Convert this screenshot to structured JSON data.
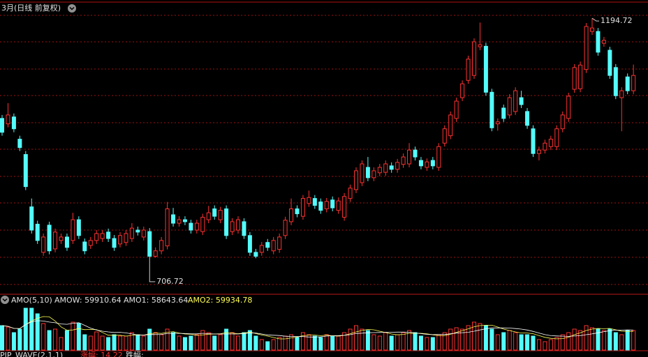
{
  "chart_data": [
    {
      "type": "candlestick",
      "title": "3月(日线 前复权)",
      "up_color": "#ff3232",
      "down_color": "#54fcfc",
      "ylim": [
        639,
        1226
      ],
      "open": [
        992,
        981,
        995,
        950,
        919,
        813,
        778,
        721,
        776,
        728,
        745,
        752,
        745,
        787,
        742,
        735,
        745,
        749,
        762,
        749,
        738,
        741,
        749,
        766,
        752,
        763,
        713,
        724,
        734,
        797,
        780,
        787,
        780,
        766,
        763,
        787,
        809,
        787,
        809,
        763,
        766,
        783,
        755,
        721,
        721,
        741,
        724,
        727,
        755,
        783,
        809,
        794,
        820,
        830,
        823,
        809,
        827,
        806,
        792,
        830,
        848,
        862,
        893,
        872,
        882,
        883,
        896,
        889,
        899,
        900,
        928,
        907,
        893,
        907,
        893,
        942,
        957,
        992,
        1034,
        1069,
        1079,
        1137,
        1138,
        1045,
        981,
        1013,
        999,
        1006,
        1034,
        1006,
        971,
        921,
        928,
        935,
        935,
        971,
        992,
        1051,
        1052,
        1091,
        1168,
        1168,
        1144,
        1130,
        1095,
        1034,
        1076,
        1048
      ],
      "high": [
        999,
        1023,
        1002,
        957,
        926,
        830,
        785,
        759,
        783,
        769,
        759,
        759,
        801,
        794,
        749,
        752,
        766,
        766,
        769,
        756,
        762,
        766,
        780,
        773,
        773,
        770,
        731,
        752,
        823,
        811,
        794,
        794,
        787,
        787,
        799,
        815,
        816,
        813,
        816,
        790,
        794,
        790,
        762,
        728,
        742,
        748,
        752,
        759,
        793,
        830,
        816,
        837,
        846,
        837,
        830,
        831,
        834,
        832,
        841,
        858,
        893,
        907,
        914,
        893,
        900,
        907,
        903,
        910,
        921,
        942,
        935,
        914,
        911,
        914,
        942,
        978,
        1006,
        1034,
        1069,
        1119,
        1154,
        1186,
        1145,
        1052,
        992,
        1020,
        1041,
        1055,
        1048,
        1013,
        978,
        935,
        949,
        957,
        978,
        1006,
        1044,
        1102,
        1107,
        1185,
        1194.72,
        1175,
        1157,
        1137,
        1102,
        1055,
        1083,
        1101
      ],
      "low": [
        957,
        974,
        964,
        926,
        847,
        759,
        738,
        714,
        717,
        721,
        738,
        724,
        738,
        748,
        717,
        728,
        738,
        742,
        742,
        724,
        731,
        734,
        742,
        755,
        745,
        706.72,
        710,
        717,
        727,
        773,
        773,
        776,
        759,
        759,
        756,
        780,
        787,
        780,
        748,
        756,
        759,
        748,
        714,
        709,
        714,
        724,
        717,
        720,
        748,
        776,
        792,
        787,
        813,
        809,
        799,
        802,
        804,
        799,
        785,
        823,
        841,
        855,
        865,
        865,
        875,
        876,
        882,
        882,
        892,
        893,
        907,
        889,
        886,
        889,
        886,
        935,
        950,
        985,
        1027,
        1062,
        1072,
        1130,
        1038,
        966,
        967,
        985,
        992,
        999,
        1013,
        971,
        914,
        907,
        921,
        928,
        928,
        964,
        985,
        1044,
        1045,
        1084,
        1161,
        1119,
        1137,
        1072,
        1031,
        966,
        1041,
        1041
      ],
      "close": [
        964,
        999,
        971,
        933,
        854,
        766,
        745,
        752,
        724,
        762,
        752,
        731,
        787,
        755,
        724,
        745,
        759,
        759,
        749,
        731,
        755,
        759,
        770,
        762,
        766,
        713,
        724,
        745,
        809,
        780,
        787,
        783,
        766,
        780,
        792,
        801,
        794,
        806,
        755,
        783,
        787,
        755,
        721,
        713,
        735,
        731,
        745,
        752,
        786,
        809,
        799,
        830,
        832,
        816,
        806,
        824,
        811,
        825,
        834,
        851,
        886,
        900,
        872,
        886,
        893,
        900,
        889,
        903,
        914,
        928,
        914,
        896,
        904,
        896,
        935,
        971,
        999,
        1027,
        1062,
        1112,
        1147,
        1141,
        1045,
        973,
        985,
        992,
        1034,
        1048,
        1020,
        978,
        921,
        928,
        942,
        950,
        971,
        999,
        1037,
        1095,
        1100,
        1178,
        1175,
        1126,
        1150,
        1079,
        1038,
        1048,
        1048,
        1079
      ]
    },
    {
      "type": "bar",
      "title": "AMO(5,10)",
      "indicators": [
        "AMOW: 59910.64",
        "AMO1: 58643.64",
        "AMO2: 59934.78"
      ],
      "indicator_colors": [
        "#e0e0e0",
        "#e0e0e0",
        "#ffff54"
      ],
      "ylim": [
        0,
        134400
      ],
      "values": [
        73500,
        69300,
        52500,
        63000,
        126000,
        126000,
        109200,
        79800,
        58800,
        63000,
        37800,
        58800,
        84000,
        79800,
        46200,
        42000,
        54600,
        42000,
        37800,
        46200,
        42000,
        42000,
        52500,
        46200,
        42000,
        63000,
        52500,
        46200,
        63000,
        52500,
        42000,
        37800,
        42000,
        46200,
        58800,
        52500,
        42000,
        46200,
        63000,
        52500,
        42000,
        52500,
        58800,
        42000,
        31500,
        25200,
        31500,
        37800,
        42000,
        46200,
        37800,
        52500,
        46200,
        42000,
        37800,
        46200,
        42000,
        42000,
        52500,
        63000,
        73500,
        63000,
        58800,
        46200,
        42000,
        52500,
        42000,
        46200,
        52500,
        58800,
        52500,
        42000,
        37800,
        37800,
        46200,
        52500,
        63000,
        67200,
        63000,
        73500,
        84000,
        79800,
        73500,
        63000,
        46200,
        52500,
        58800,
        52500,
        46200,
        46200,
        42000,
        31500,
        25200,
        31500,
        37800,
        46200,
        52500,
        63000,
        58800,
        73500,
        67200,
        63000,
        58800,
        63000,
        52500,
        46200,
        58800,
        58800
      ]
    }
  ],
  "footer": [
    "PIP_WAVE(2,1,1)",
    "涨幅: 14.22",
    "跌幅:"
  ]
}
